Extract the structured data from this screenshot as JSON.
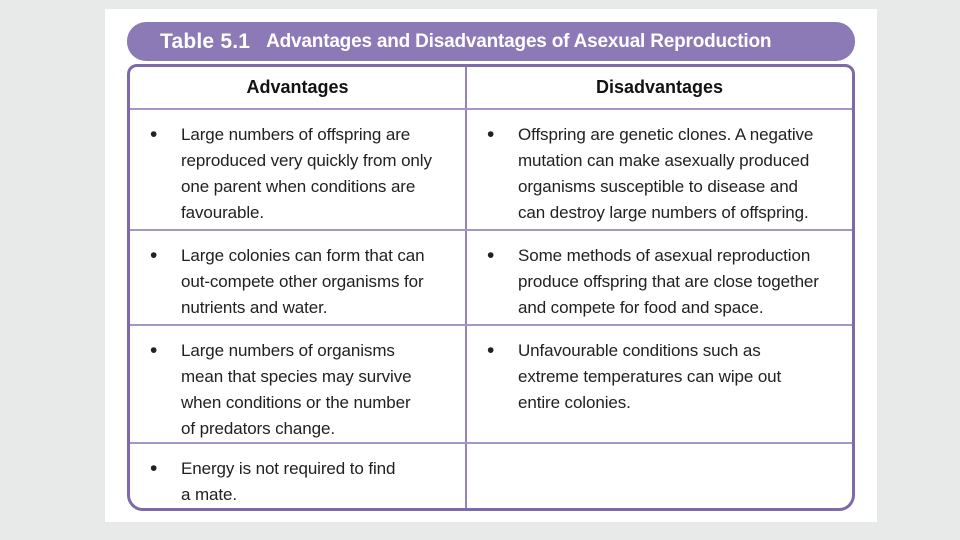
{
  "caption": {
    "number": "Table 5.1",
    "title": "Advantages and Disadvantages of Asexual Reproduction"
  },
  "headers": {
    "advantages": "Advantages",
    "disadvantages": "Disadvantages"
  },
  "rows": [
    {
      "advantage": "Large numbers of offspring are\nreproduced very quickly from only\none parent when conditions are\nfavourable.",
      "disadvantage": "Offspring are genetic clones. A negative\nmutation can make asexually produced\norganisms susceptible to disease and\ncan destroy large numbers of offspring."
    },
    {
      "advantage": "Large colonies can form that can\nout-compete other organisms for\nnutrients and water.",
      "disadvantage": "Some methods of asexual reproduction\nproduce offspring that are close together\nand compete for food and space."
    },
    {
      "advantage": "Large numbers of organisms\nmean that species may survive\nwhen conditions or the number\nof predators change.",
      "disadvantage": "Unfavourable conditions such as\nextreme temperatures can wipe out\nentire colonies."
    },
    {
      "advantage": "Energy is not required to find\na mate.",
      "disadvantage": ""
    }
  ],
  "glyphs": {
    "bullet": "•"
  },
  "colors": {
    "canvas_bg": "#e8e9e9",
    "page_bg": "#ffffff",
    "accent_purple": "#8b7ab6",
    "outer_border": "#7e6aa9",
    "inner_line": "#a696c7",
    "divider_line": "#9484ba",
    "body_text": "#232022",
    "header_text": "#141114",
    "title_text": "#ffffff"
  }
}
